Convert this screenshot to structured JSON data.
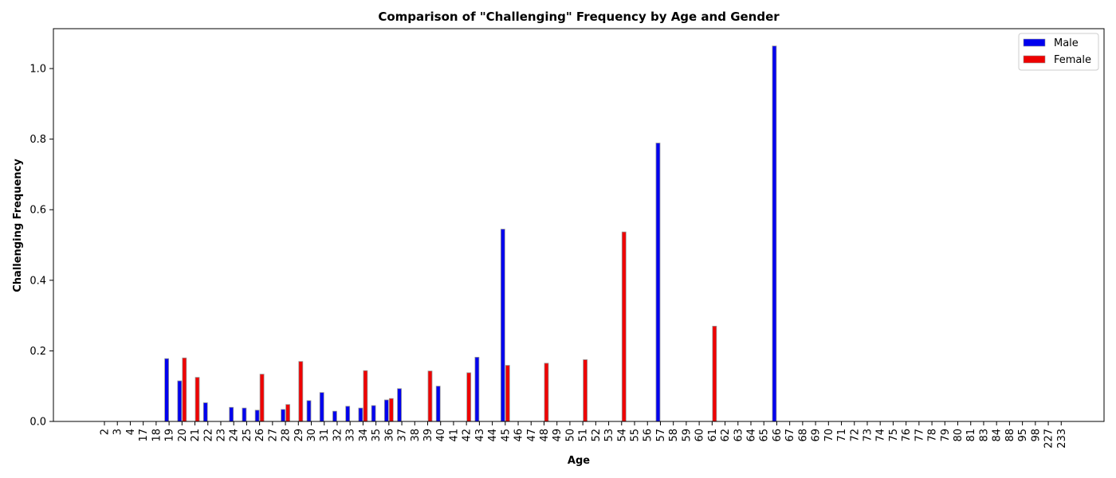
{
  "chart_data": {
    "type": "bar",
    "title": "Comparison of \"Challenging\" Frequency by Age and Gender",
    "xlabel": "Age",
    "ylabel": "Challenging Frequency",
    "ylim": [
      0,
      1.113
    ],
    "yticks": [
      "0.0",
      "0.2",
      "0.4",
      "0.6",
      "0.8",
      "1.0"
    ],
    "legend_position": "top-right",
    "grid": false,
    "categories": [
      "2",
      "3",
      "4",
      "17",
      "18",
      "19",
      "20",
      "21",
      "22",
      "23",
      "24",
      "25",
      "26",
      "27",
      "28",
      "29",
      "30",
      "31",
      "32",
      "33",
      "34",
      "35",
      "36",
      "37",
      "38",
      "39",
      "40",
      "41",
      "42",
      "43",
      "44",
      "45",
      "46",
      "47",
      "48",
      "49",
      "50",
      "51",
      "52",
      "53",
      "54",
      "55",
      "56",
      "57",
      "58",
      "59",
      "60",
      "61",
      "62",
      "63",
      "64",
      "65",
      "66",
      "67",
      "68",
      "69",
      "70",
      "71",
      "72",
      "73",
      "74",
      "75",
      "76",
      "77",
      "78",
      "79",
      "80",
      "81",
      "83",
      "84",
      "88",
      "95",
      "98",
      "227",
      "233"
    ],
    "series": [
      {
        "name": "Male",
        "color": "#0000ee",
        "values": [
          0,
          0,
          0,
          0,
          0,
          0.178,
          0.115,
          0,
          0.053,
          0,
          0.04,
          0.038,
          0.032,
          0,
          0.034,
          0,
          0.059,
          0.082,
          0.029,
          0.043,
          0.038,
          0.045,
          0.061,
          0.093,
          0,
          0,
          0.1,
          0,
          0,
          0.182,
          0,
          0.545,
          0,
          0,
          0,
          0,
          0,
          0,
          0,
          0,
          0,
          0,
          0,
          0.789,
          0,
          0,
          0,
          0,
          0,
          0,
          0,
          0,
          1.064,
          0,
          0,
          0,
          0,
          0,
          0,
          0,
          0,
          0,
          0,
          0,
          0,
          0,
          0,
          0,
          0,
          0,
          0,
          0,
          0,
          0,
          0
        ]
      },
      {
        "name": "Female",
        "color": "#ee0000",
        "values": [
          0,
          0,
          0,
          0,
          0,
          0,
          0.18,
          0.125,
          0,
          0,
          0,
          0,
          0.134,
          0,
          0.048,
          0.17,
          0,
          0,
          0,
          0,
          0.144,
          0,
          0.065,
          0,
          0,
          0.143,
          0,
          0,
          0.138,
          0,
          0,
          0.159,
          0,
          0,
          0.165,
          0,
          0,
          0.175,
          0,
          0,
          0.537,
          0,
          0,
          0,
          0,
          0,
          0,
          0.27,
          0,
          0,
          0,
          0,
          0,
          0,
          0,
          0,
          0,
          0,
          0,
          0,
          0,
          0,
          0,
          0,
          0,
          0,
          0,
          0,
          0,
          0,
          0,
          0,
          0,
          0,
          0
        ]
      }
    ]
  }
}
